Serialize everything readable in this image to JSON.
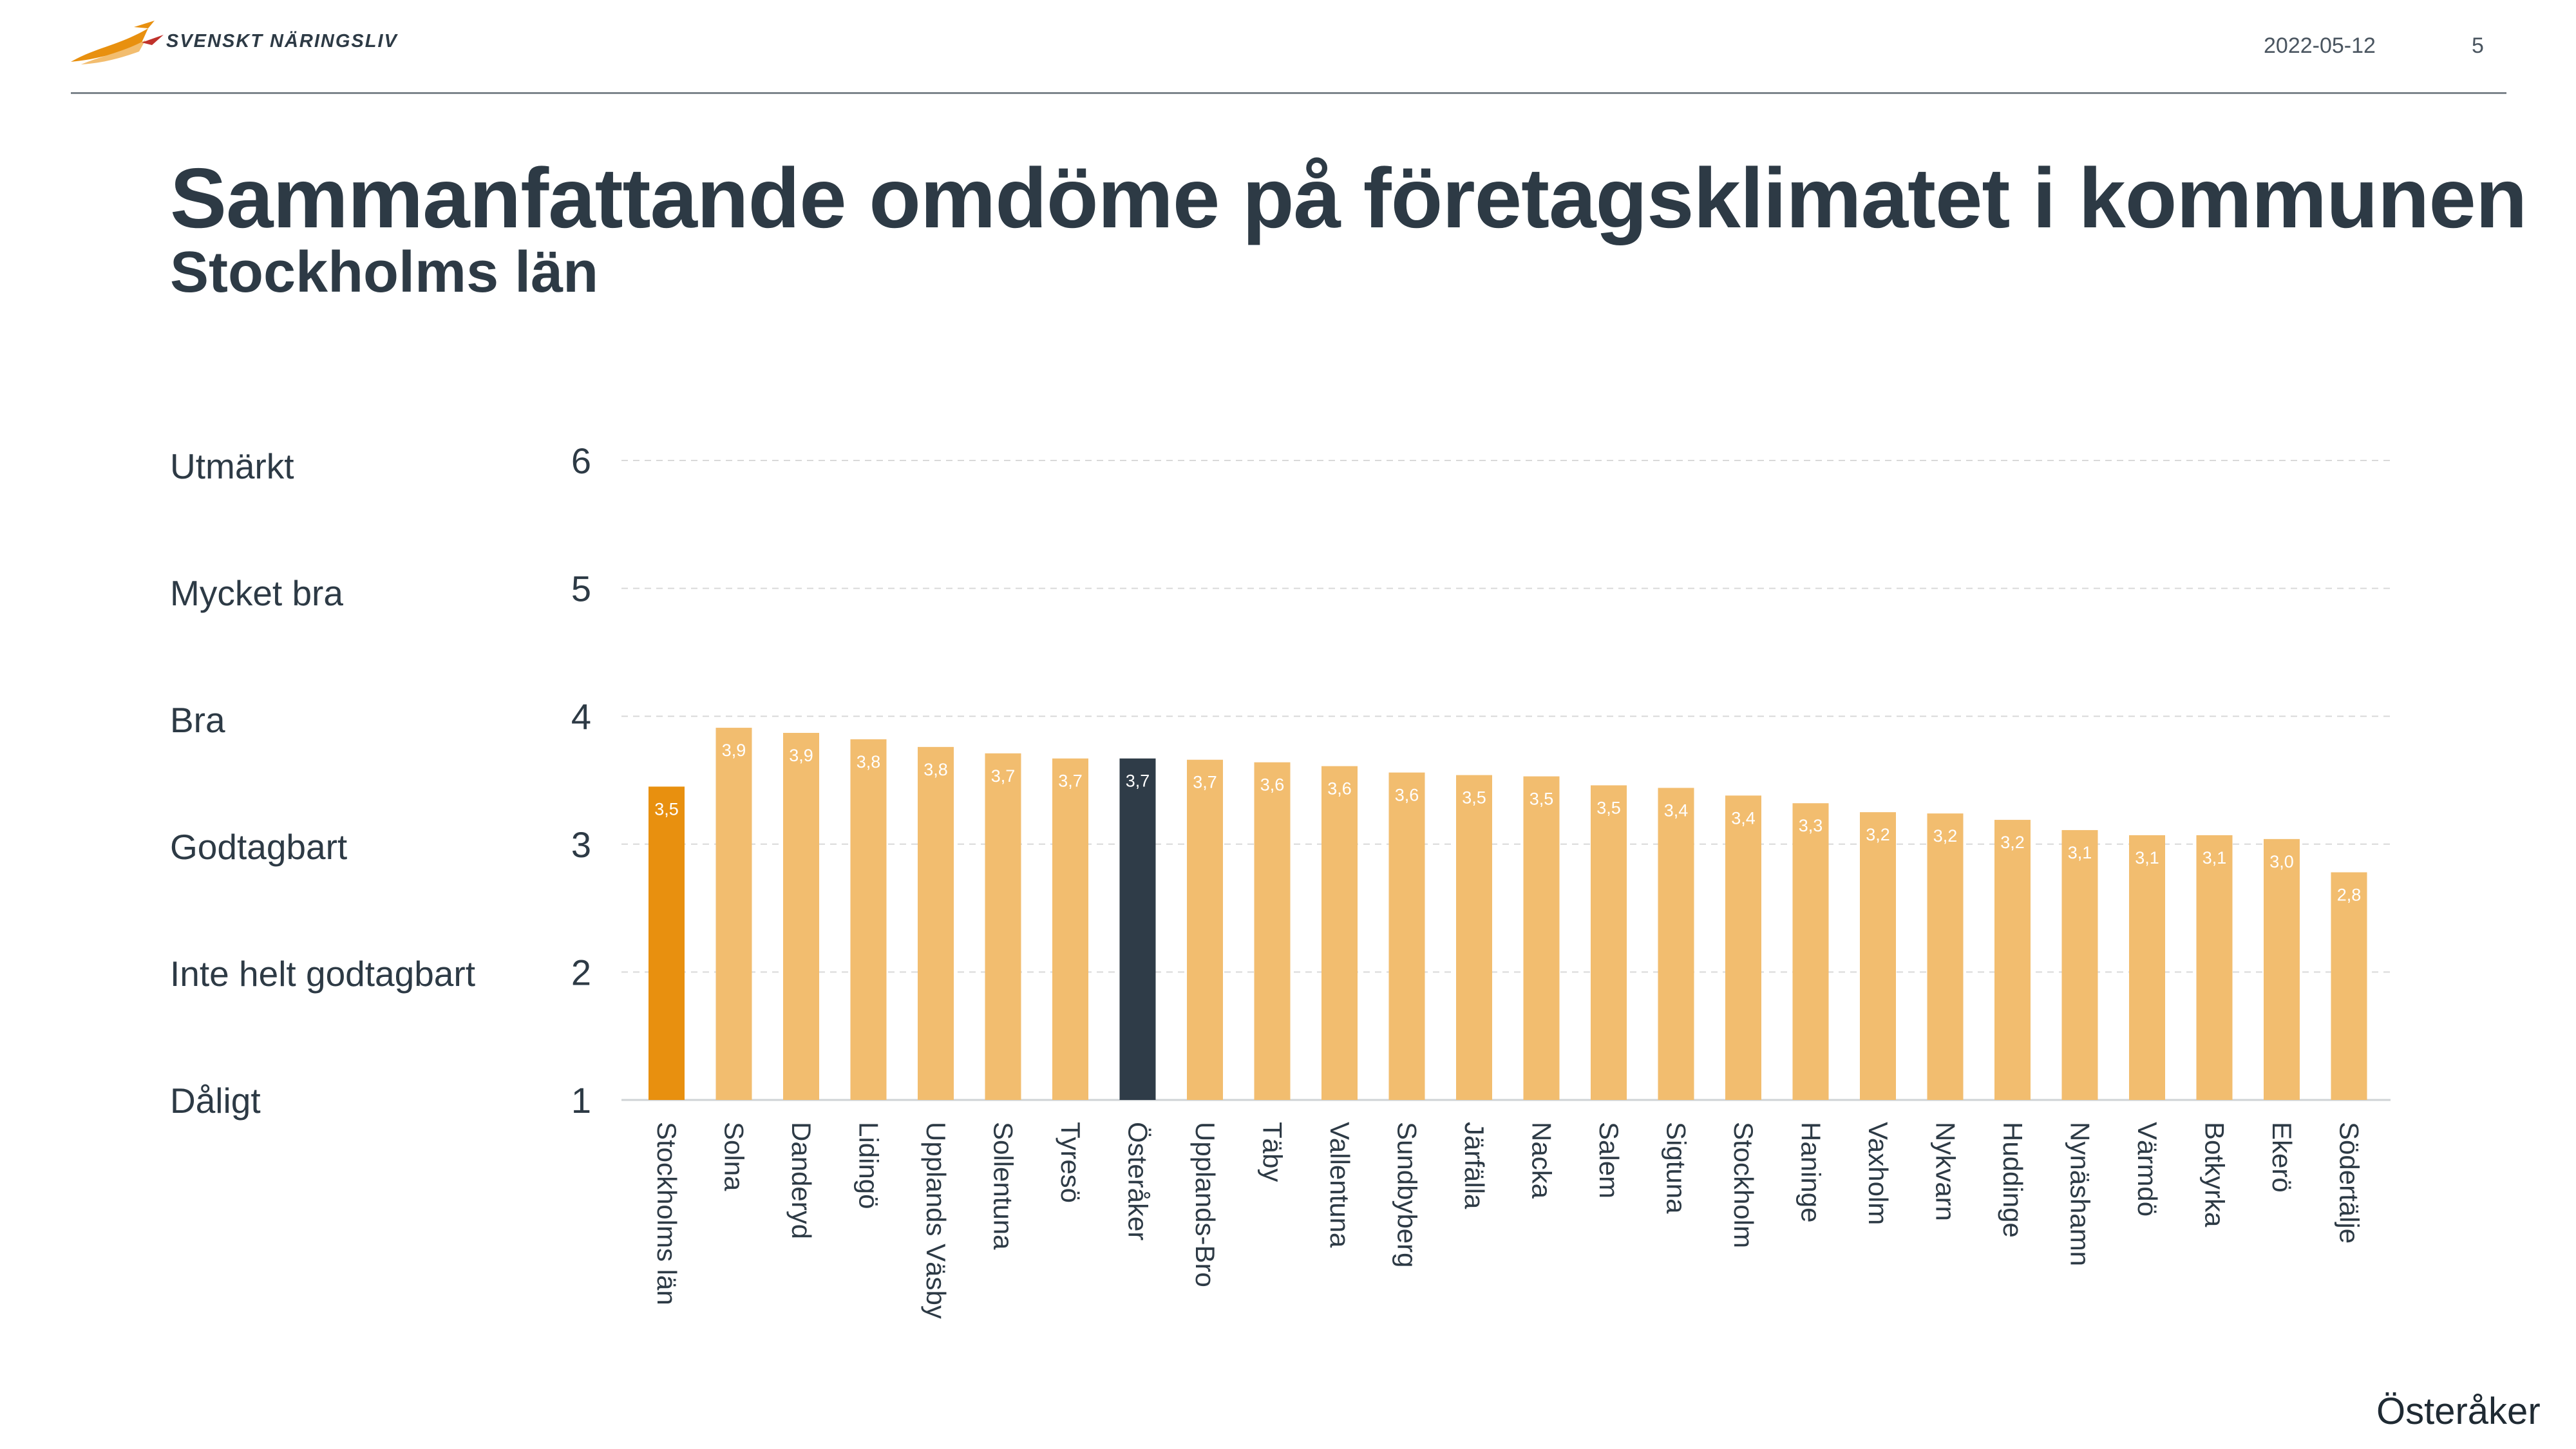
{
  "header": {
    "brand": "SVENSKT NÄRINGSLIV",
    "date": "2022-05-12",
    "page_number": "5"
  },
  "title": "Sammanfattande omdöme på företagsklimatet i kommunen",
  "subtitle": "Stockholms län",
  "rating_labels": [
    "Utmärkt",
    "Mycket bra",
    "Bra",
    "Godtagbart",
    "Inte helt godtagbart",
    "Dåligt"
  ],
  "footer": {
    "municipality": "Österåker"
  },
  "colors": {
    "default": "#f2bd6f",
    "region": "#e8900f",
    "highlight": "#2f3c48",
    "grid": "#d9d9d9"
  },
  "chart_data": {
    "type": "bar",
    "title": "Sammanfattande omdöme på företagsklimatet i kommunen",
    "subtitle": "Stockholms län",
    "ylim": [
      1,
      6
    ],
    "yticks": [
      6,
      5,
      4,
      3,
      2,
      1
    ],
    "grid": true,
    "categories": [
      "Stockholms län",
      "Solna",
      "Danderyd",
      "Lidingö",
      "Upplands Väsby",
      "Sollentuna",
      "Tyresö",
      "Österåker",
      "Upplands-Bro",
      "Täby",
      "Vallentuna",
      "Sundbyberg",
      "Järfälla",
      "Nacka",
      "Salem",
      "Sigtuna",
      "Stockholm",
      "Haninge",
      "Vaxholm",
      "Nykvarn",
      "Huddinge",
      "Nynäshamn",
      "Värmdö",
      "Botkyrka",
      "Ekerö",
      "Södertälje"
    ],
    "values": [
      3.45,
      3.91,
      3.87,
      3.82,
      3.76,
      3.71,
      3.67,
      3.67,
      3.66,
      3.64,
      3.61,
      3.56,
      3.54,
      3.53,
      3.46,
      3.44,
      3.38,
      3.32,
      3.25,
      3.24,
      3.19,
      3.11,
      3.07,
      3.07,
      3.04,
      2.78
    ],
    "value_labels": [
      "3,5",
      "3,9",
      "3,9",
      "3,8",
      "3,8",
      "3,7",
      "3,7",
      "3,7",
      "3,7",
      "3,6",
      "3,6",
      "3,6",
      "3,5",
      "3,5",
      "3,5",
      "3,4",
      "3,4",
      "3,3",
      "3,2",
      "3,2",
      "3,2",
      "3,1",
      "3,1",
      "3,1",
      "3,0",
      "2,8"
    ],
    "region_index": 0,
    "highlight_index": 7
  }
}
